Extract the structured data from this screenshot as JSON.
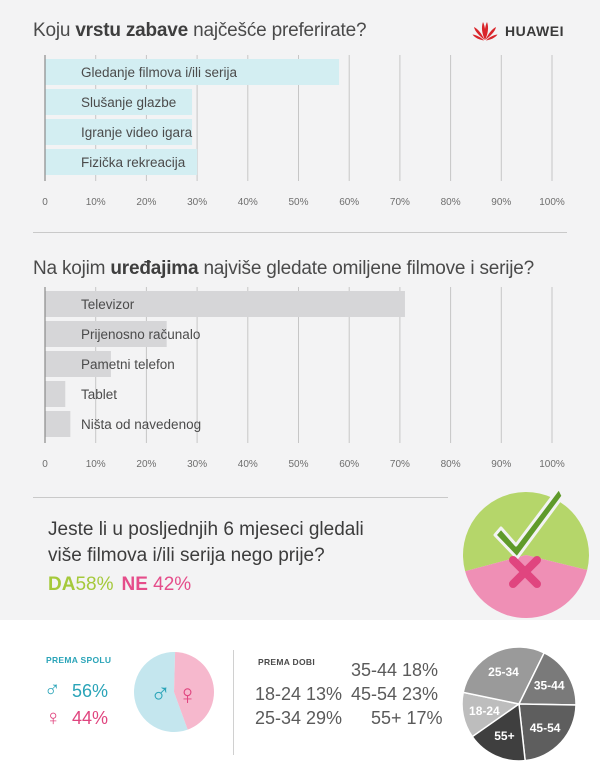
{
  "brand": {
    "name": "HUAWEI"
  },
  "q1": {
    "pre": "Koju ",
    "bold": "vrstu zabave",
    "post": " najčešće preferirate?"
  },
  "q2": {
    "pre": "Na kojim ",
    "bold": "uređajima",
    "post": " najviše gledate omiljene filmove i serije?"
  },
  "q3": {
    "line1": "Jeste li u posljednjih 6 mjeseci gledali",
    "line2": "više filmova i/ili serija nego prije?",
    "yes_label": "DA",
    "yes_value": "58%",
    "no_label": "NE",
    "no_value": "42%"
  },
  "gender": {
    "title": "PREMA SPOLU",
    "male_symbol": "♂",
    "female_symbol": "♀",
    "male_value": "56%",
    "female_value": "44%"
  },
  "age": {
    "title": "PREMA DOBI",
    "r1c1": "18-24  13%",
    "r1c2": "35-44  18%",
    "r2c1": "25-34  29%",
    "r2c2": "45-54  23%",
    "r3c2": "55+  17%"
  },
  "chart_data": [
    {
      "type": "bar",
      "orientation": "horizontal",
      "title": "Koju vrstu zabave najčešće preferirate?",
      "categories": [
        "Gledanje filmova i/ili serija",
        "Slušanje glazbe",
        "Igranje video igara",
        "Fizička rekreacija"
      ],
      "values": [
        58,
        29,
        29,
        30
      ],
      "xlim": [
        0,
        100
      ],
      "ticks": [
        "0",
        "10%",
        "20%",
        "30%",
        "40%",
        "50%",
        "60%",
        "70%",
        "80%",
        "90%",
        "100%"
      ],
      "bar_color": "#d3eef2",
      "grid": true
    },
    {
      "type": "bar",
      "orientation": "horizontal",
      "title": "Na kojim uređajima najviše gledate omiljene filmove i serije?",
      "categories": [
        "Televizor",
        "Prijenosno računalo",
        "Pametni telefon",
        "Tablet",
        "Ništa od navedenog"
      ],
      "values": [
        71,
        24,
        13,
        4,
        5
      ],
      "xlim": [
        0,
        100
      ],
      "ticks": [
        "0",
        "10%",
        "20%",
        "30%",
        "40%",
        "50%",
        "60%",
        "70%",
        "80%",
        "90%",
        "100%"
      ],
      "bar_color": "#d6d6d8",
      "grid": true
    },
    {
      "type": "pie",
      "categories": [
        "DA",
        "NE"
      ],
      "values": [
        58,
        42
      ],
      "colors": [
        "#b5d66a",
        "#ef8fb5"
      ]
    },
    {
      "type": "pie",
      "categories": [
        "♂",
        "♀"
      ],
      "values": [
        56,
        44
      ],
      "colors": [
        "#c4e6ee",
        "#f6b8cd"
      ]
    },
    {
      "type": "pie",
      "categories": [
        "18-24",
        "25-34",
        "35-44",
        "45-54",
        "55+"
      ],
      "values": [
        13,
        29,
        18,
        23,
        17
      ],
      "colors": [
        "#bdbdbd",
        "#9a9a9a",
        "#7a7a7a",
        "#5e5e5e",
        "#3f3f3f"
      ]
    }
  ]
}
